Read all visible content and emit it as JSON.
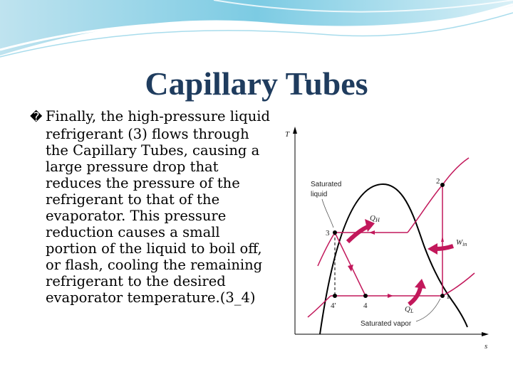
{
  "slide": {
    "title": "Capillary Tubes",
    "bullet_icon": "wingdings-bullet",
    "bullet_glyph": "�",
    "body": "Finally, the high-pressure liquid refrigerant (3) flows through the Capillary Tubes, causing a large pressure drop that reduces the pressure of the refrigerant to that of the evaporator. This pressure reduction causes a small portion of the liquid to boil off, or flash, cooling the remaining refrigerant to the desired evaporator temperature.(3_4)"
  },
  "diagram": {
    "axis_y": "T",
    "axis_x": "s",
    "saturated_liquid_line1": "Saturated",
    "saturated_liquid_line2": "liquid",
    "saturated_vapor": "Saturated vapor",
    "point_1": "1",
    "point_2": "2",
    "point_3": "3",
    "point_4": "4",
    "point_4prime": "4'",
    "qh_main": "Q",
    "qh_sub": "H",
    "ql_main": "Q",
    "ql_sub": "L",
    "win_main": "W",
    "win_sub": "in",
    "colors": {
      "cycle": "#c2185b",
      "dome": "#000000",
      "title": "#1f3c5e"
    }
  }
}
